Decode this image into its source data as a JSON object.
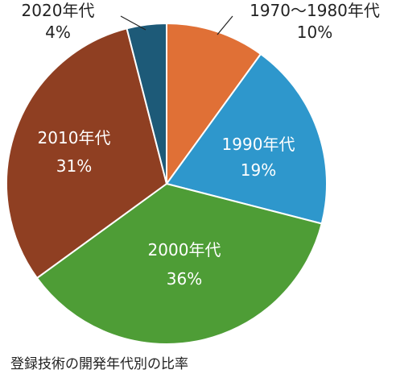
{
  "chart_data": {
    "type": "pie",
    "title": "登録技術の開発年代別の比率",
    "slices": [
      {
        "label": "1970～1980年代",
        "value": 10,
        "display": "10%",
        "color": "#e07036"
      },
      {
        "label": "1990年代",
        "value": 19,
        "display": "19%",
        "color": "#2e97cc"
      },
      {
        "label": "2000年代",
        "value": 36,
        "display": "36%",
        "color": "#4e9d36"
      },
      {
        "label": "2010年代",
        "value": 31,
        "display": "31%",
        "color": "#8f3f22"
      },
      {
        "label": "2020年代",
        "value": 4,
        "display": "4%",
        "color": "#1d5a78"
      }
    ]
  }
}
